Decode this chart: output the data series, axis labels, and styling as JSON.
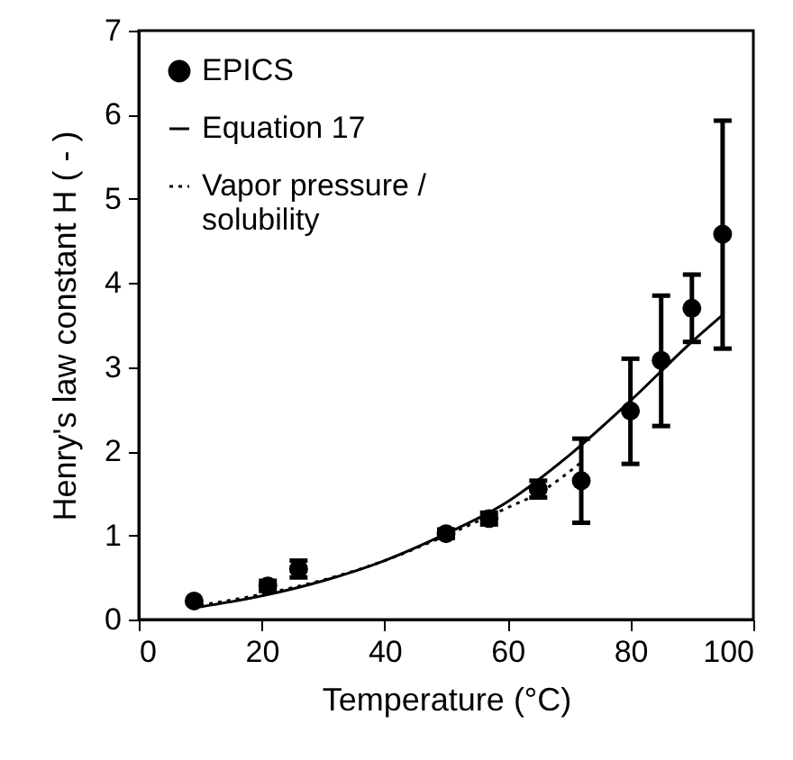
{
  "chart_data": {
    "type": "scatter",
    "xlabel": "Temperature (°C)",
    "ylabel": "Henry's law constant H ( - )",
    "xlim": [
      0,
      100
    ],
    "ylim": [
      0,
      7
    ],
    "xticks": [
      0,
      20,
      40,
      60,
      80,
      100
    ],
    "yticks": [
      0,
      1,
      2,
      3,
      4,
      5,
      6,
      7
    ],
    "grid": false,
    "legend": "top left",
    "series": [
      {
        "name": "EPICS",
        "marker": "circle",
        "color": "#000000",
        "x": [
          9,
          21,
          26,
          50,
          57,
          65,
          72,
          80,
          85,
          90,
          95
        ],
        "values": [
          0.22,
          0.4,
          0.6,
          1.02,
          1.2,
          1.55,
          1.65,
          2.48,
          3.08,
          3.7,
          4.58
        ],
        "errors": [
          null,
          0.06,
          [
            0.5,
            0.7
          ],
          0.05,
          0.07,
          [
            1.45,
            1.65
          ],
          [
            1.15,
            2.15
          ],
          [
            1.85,
            3.1
          ],
          [
            2.3,
            3.85
          ],
          [
            3.3,
            4.1
          ],
          [
            3.22,
            5.93
          ]
        ]
      },
      {
        "name": "Equation 17",
        "type": "line",
        "marker": "none",
        "line_style": "solid",
        "color": "#000000",
        "x": [
          10,
          20,
          30,
          40,
          50,
          60,
          70,
          80,
          90,
          95
        ],
        "values": [
          0.15,
          0.28,
          0.46,
          0.7,
          1.02,
          1.4,
          1.95,
          2.6,
          3.3,
          3.62
        ]
      },
      {
        "name": "Vapor pressure / solubility",
        "type": "line",
        "marker": "none",
        "line_style": "dotted",
        "color": "#000000",
        "x": [
          10,
          20,
          30,
          40,
          50,
          60,
          65,
          72
        ],
        "values": [
          0.17,
          0.3,
          0.47,
          0.7,
          1.0,
          1.33,
          1.5,
          1.87
        ]
      }
    ]
  }
}
